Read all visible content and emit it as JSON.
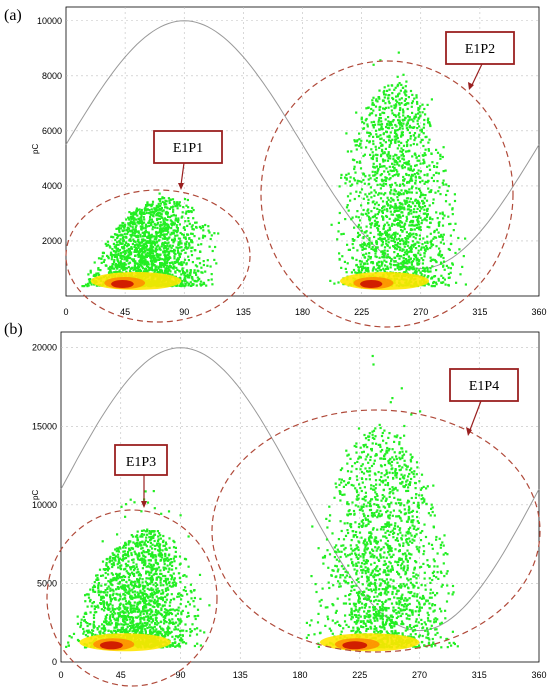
{
  "chart_data": [
    {
      "type": "scatter",
      "panel_label": "(a)",
      "ylabel": "pC",
      "xlim": [
        0,
        360
      ],
      "ylim": [
        0,
        10500
      ],
      "x_ticks": [
        0,
        45,
        90,
        135,
        180,
        225,
        270,
        315,
        360
      ],
      "y_ticks": [
        2000,
        4000,
        6000,
        8000,
        10000
      ],
      "grid": true,
      "reference_sine": {
        "amplitude": 4500,
        "offset": 5500,
        "period": 360
      },
      "clusters": [
        {
          "label": "E1P1",
          "x_range": [
            5,
            120
          ],
          "peak_x": 75,
          "peak_value": 3600,
          "base": 400,
          "outlier_max": 3800
        },
        {
          "label": "E1P2",
          "x_range": [
            195,
            308
          ],
          "peak_x": 250,
          "peak_value": 7800,
          "base": 400,
          "outlier_max": 9200
        }
      ],
      "colors": {
        "points": "#22ee22",
        "dense": "#ffe600",
        "core": "#cc1100",
        "circle": "#b04a3a",
        "sine": "#999999"
      }
    },
    {
      "type": "scatter",
      "panel_label": "(b)",
      "ylabel": "pC",
      "xlim": [
        0,
        360
      ],
      "ylim": [
        0,
        21000
      ],
      "x_ticks": [
        0,
        45,
        90,
        135,
        180,
        225,
        270,
        315,
        360
      ],
      "y_ticks": [
        0,
        5000,
        10000,
        15000,
        20000
      ],
      "grid": true,
      "reference_sine": {
        "amplitude": 9000,
        "offset": 11000,
        "period": 360
      },
      "clusters": [
        {
          "label": "E1P3",
          "x_range": [
            0,
            115
          ],
          "peak_x": 65,
          "peak_value": 8500,
          "base": 1000,
          "outlier_max": 11000
        },
        {
          "label": "E1P4",
          "x_range": [
            180,
            305
          ],
          "peak_x": 240,
          "peak_value": 15000,
          "base": 1000,
          "outlier_max": 20000
        }
      ],
      "colors": {
        "points": "#22ee22",
        "dense": "#ffe600",
        "core": "#cc1100",
        "circle": "#b04a3a",
        "sine": "#999999"
      }
    }
  ]
}
